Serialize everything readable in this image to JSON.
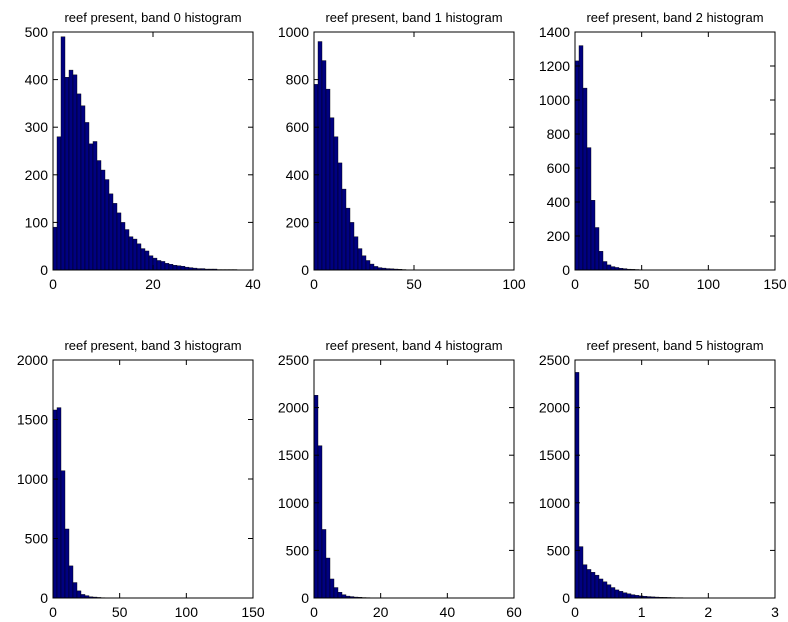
{
  "chart_data": [
    {
      "type": "bar",
      "title": "reef present, band 0 histogram",
      "xlim": [
        0,
        40
      ],
      "ylim": [
        0,
        500
      ],
      "xticks": [
        0,
        20,
        40
      ],
      "yticks": [
        0,
        100,
        200,
        300,
        400,
        500
      ],
      "bin_width": 0.8,
      "values": [
        90,
        280,
        490,
        405,
        420,
        410,
        370,
        345,
        310,
        265,
        270,
        230,
        210,
        190,
        160,
        140,
        120,
        100,
        85,
        70,
        65,
        55,
        45,
        40,
        30,
        25,
        20,
        18,
        14,
        12,
        10,
        9,
        8,
        6,
        5,
        4,
        3,
        3,
        2,
        2,
        2,
        1,
        1,
        1,
        1,
        1,
        0,
        0,
        0,
        0
      ]
    },
    {
      "type": "bar",
      "title": "reef present, band 1 histogram",
      "xlim": [
        0,
        100
      ],
      "ylim": [
        0,
        1000
      ],
      "xticks": [
        0,
        50,
        100
      ],
      "yticks": [
        0,
        200,
        400,
        600,
        800,
        1000
      ],
      "bin_width": 2,
      "values": [
        780,
        960,
        880,
        760,
        640,
        560,
        450,
        340,
        260,
        200,
        140,
        90,
        60,
        40,
        25,
        15,
        10,
        8,
        6,
        5,
        4,
        3,
        2,
        1,
        1,
        0,
        0,
        0,
        0,
        0
      ]
    },
    {
      "type": "bar",
      "title": "reef present, band 2 histogram",
      "xlim": [
        0,
        150
      ],
      "ylim": [
        0,
        1400
      ],
      "xticks": [
        0,
        50,
        100,
        150
      ],
      "yticks": [
        0,
        200,
        400,
        600,
        800,
        1000,
        1200,
        1400
      ],
      "bin_width": 3,
      "values": [
        1230,
        1320,
        1070,
        720,
        410,
        250,
        110,
        50,
        30,
        20,
        15,
        10,
        8,
        5,
        4,
        3,
        2,
        1,
        1,
        0
      ]
    },
    {
      "type": "bar",
      "title": "reef present, band 3 histogram",
      "xlim": [
        0,
        150
      ],
      "ylim": [
        0,
        2000
      ],
      "xticks": [
        0,
        50,
        100,
        150
      ],
      "yticks": [
        0,
        500,
        1000,
        1500,
        2000
      ],
      "bin_width": 3,
      "values": [
        1580,
        1600,
        1070,
        580,
        270,
        130,
        60,
        30,
        20,
        10,
        8,
        5,
        3,
        2,
        1,
        0
      ]
    },
    {
      "type": "bar",
      "title": "reef present, band 4 histogram",
      "xlim": [
        0,
        60
      ],
      "ylim": [
        0,
        2500
      ],
      "xticks": [
        0,
        20,
        40,
        60
      ],
      "yticks": [
        0,
        500,
        1000,
        1500,
        2000,
        2500
      ],
      "bin_width": 1.2,
      "values": [
        2130,
        1600,
        720,
        420,
        200,
        110,
        60,
        35,
        20,
        15,
        10,
        8,
        5,
        4,
        3,
        2,
        1,
        1,
        0,
        0
      ]
    },
    {
      "type": "bar",
      "title": "reef present, band 5 histogram",
      "xlim": [
        0,
        3
      ],
      "ylim": [
        0,
        2500
      ],
      "xticks": [
        0,
        1,
        2,
        3
      ],
      "yticks": [
        0,
        500,
        1000,
        1500,
        2000,
        2500
      ],
      "bin_width": 0.06,
      "values": [
        2370,
        540,
        350,
        300,
        270,
        240,
        200,
        170,
        140,
        110,
        85,
        70,
        55,
        45,
        35,
        28,
        22,
        18,
        15,
        12,
        10,
        8,
        7,
        6,
        5,
        4,
        4,
        3,
        3,
        2,
        2,
        2,
        1,
        1,
        1,
        1,
        0,
        0,
        0,
        0
      ]
    }
  ],
  "colors": {
    "bar_fill": "#000080",
    "bar_edge": "#000000",
    "axes": "#000000",
    "background": "#ffffff"
  }
}
